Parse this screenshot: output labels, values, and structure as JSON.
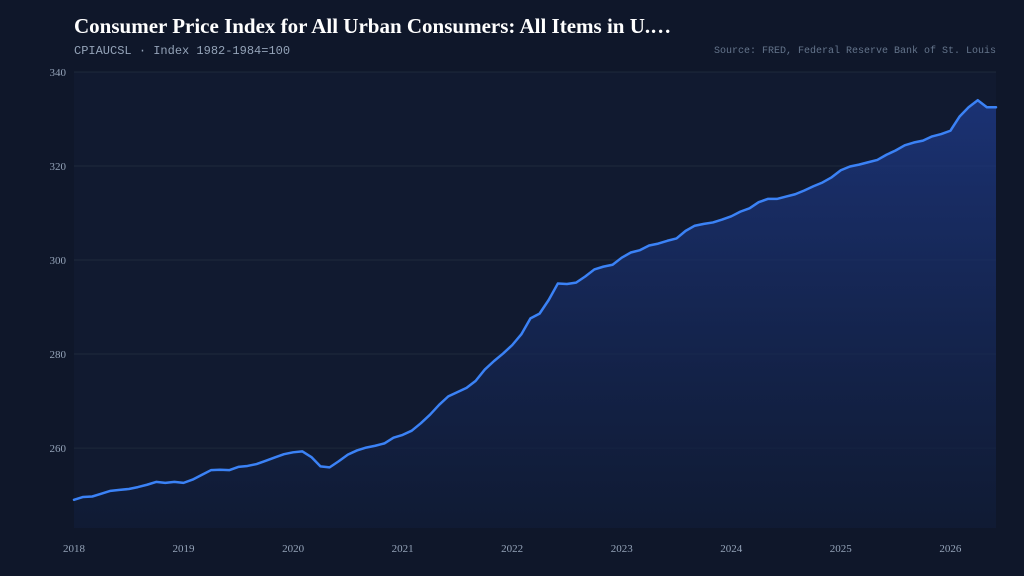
{
  "header": {
    "title": "Consumer Price Index for All Urban Consumers: All Items in U.…",
    "series_id": "CPIAUCSL",
    "separator": "·",
    "units": "Index 1982-1984=100",
    "source": "Source: FRED, Federal Reserve Bank of St. Louis"
  },
  "colors": {
    "background": "#0f172a",
    "plot_background": "#111a30",
    "line": "#3b82f6",
    "grid": "#1e293b"
  },
  "chart_data": {
    "type": "area",
    "title": "Consumer Price Index for All Urban Consumers: All Items in U.…",
    "ylabel": "",
    "xlabel": "",
    "ylim": [
      243,
      340
    ],
    "xlim": [
      "2018-01",
      "2026-06"
    ],
    "grid": true,
    "legend": "none",
    "yticks": [
      260,
      280,
      300,
      320,
      340
    ],
    "xticks": [
      "2018",
      "2019",
      "2020",
      "2021",
      "2022",
      "2023",
      "2024",
      "2025",
      "2026"
    ],
    "series": [
      {
        "x": [
          "2018-01",
          "2018-02",
          "2018-03",
          "2018-04",
          "2018-05",
          "2018-06",
          "2018-07",
          "2018-08",
          "2018-09",
          "2018-10",
          "2018-11",
          "2018-12",
          "2019-01",
          "2019-02",
          "2019-03",
          "2019-04",
          "2019-05",
          "2019-06",
          "2019-07",
          "2019-08",
          "2019-09",
          "2019-10",
          "2019-11",
          "2019-12",
          "2020-01",
          "2020-02",
          "2020-03",
          "2020-04",
          "2020-05",
          "2020-06",
          "2020-07",
          "2020-08",
          "2020-09",
          "2020-10",
          "2020-11",
          "2020-12",
          "2021-01",
          "2021-02",
          "2021-03",
          "2021-04",
          "2021-05",
          "2021-06",
          "2021-07",
          "2021-08",
          "2021-09",
          "2021-10",
          "2021-11",
          "2021-12",
          "2022-01",
          "2022-02",
          "2022-03",
          "2022-04",
          "2022-05",
          "2022-06",
          "2022-07",
          "2022-08",
          "2022-09",
          "2022-10",
          "2022-11",
          "2022-12",
          "2023-01",
          "2023-02",
          "2023-03",
          "2023-04",
          "2023-05",
          "2023-06",
          "2023-07",
          "2023-08",
          "2023-09",
          "2023-10",
          "2023-11",
          "2023-12",
          "2024-01",
          "2024-02",
          "2024-03",
          "2024-04",
          "2024-05",
          "2024-06",
          "2024-07",
          "2024-08",
          "2024-09",
          "2024-10",
          "2024-11",
          "2024-12",
          "2025-01",
          "2025-02",
          "2025-03",
          "2025-04",
          "2025-05",
          "2025-06",
          "2025-07",
          "2025-08",
          "2025-09",
          "2025-10",
          "2025-11",
          "2025-12",
          "2026-01",
          "2026-02",
          "2026-03",
          "2026-04",
          "2026-05",
          "2026-06"
        ],
        "values": [
          249.0,
          249.6,
          249.7,
          250.3,
          250.9,
          251.1,
          251.3,
          251.7,
          252.2,
          252.8,
          252.6,
          252.8,
          252.6,
          253.3,
          254.3,
          255.3,
          255.4,
          255.3,
          256.0,
          256.2,
          256.6,
          257.3,
          258.0,
          258.7,
          259.1,
          259.3,
          258.1,
          256.1,
          255.9,
          257.2,
          258.6,
          259.5,
          260.1,
          260.5,
          261.0,
          262.2,
          262.8,
          263.7,
          265.3,
          267.1,
          269.2,
          271.0,
          271.9,
          272.8,
          274.3,
          276.7,
          278.5,
          280.1,
          281.9,
          284.2,
          287.6,
          288.6,
          291.5,
          295.0,
          294.9,
          295.2,
          296.5,
          298.0,
          298.6,
          299.0,
          300.5,
          301.6,
          302.1,
          303.1,
          303.5,
          304.1,
          304.6,
          306.2,
          307.3,
          307.7,
          308.0,
          308.6,
          309.3,
          310.3,
          311.0,
          312.3,
          313.0,
          313.0,
          313.5,
          314.0,
          314.8,
          315.7,
          316.5,
          317.6,
          319.1,
          319.9,
          320.3,
          320.8,
          321.3,
          322.4,
          323.3,
          324.4,
          325.0,
          325.4,
          326.3,
          326.8,
          327.5,
          330.5,
          332.5,
          334.0,
          332.5,
          332.5
        ]
      }
    ]
  }
}
